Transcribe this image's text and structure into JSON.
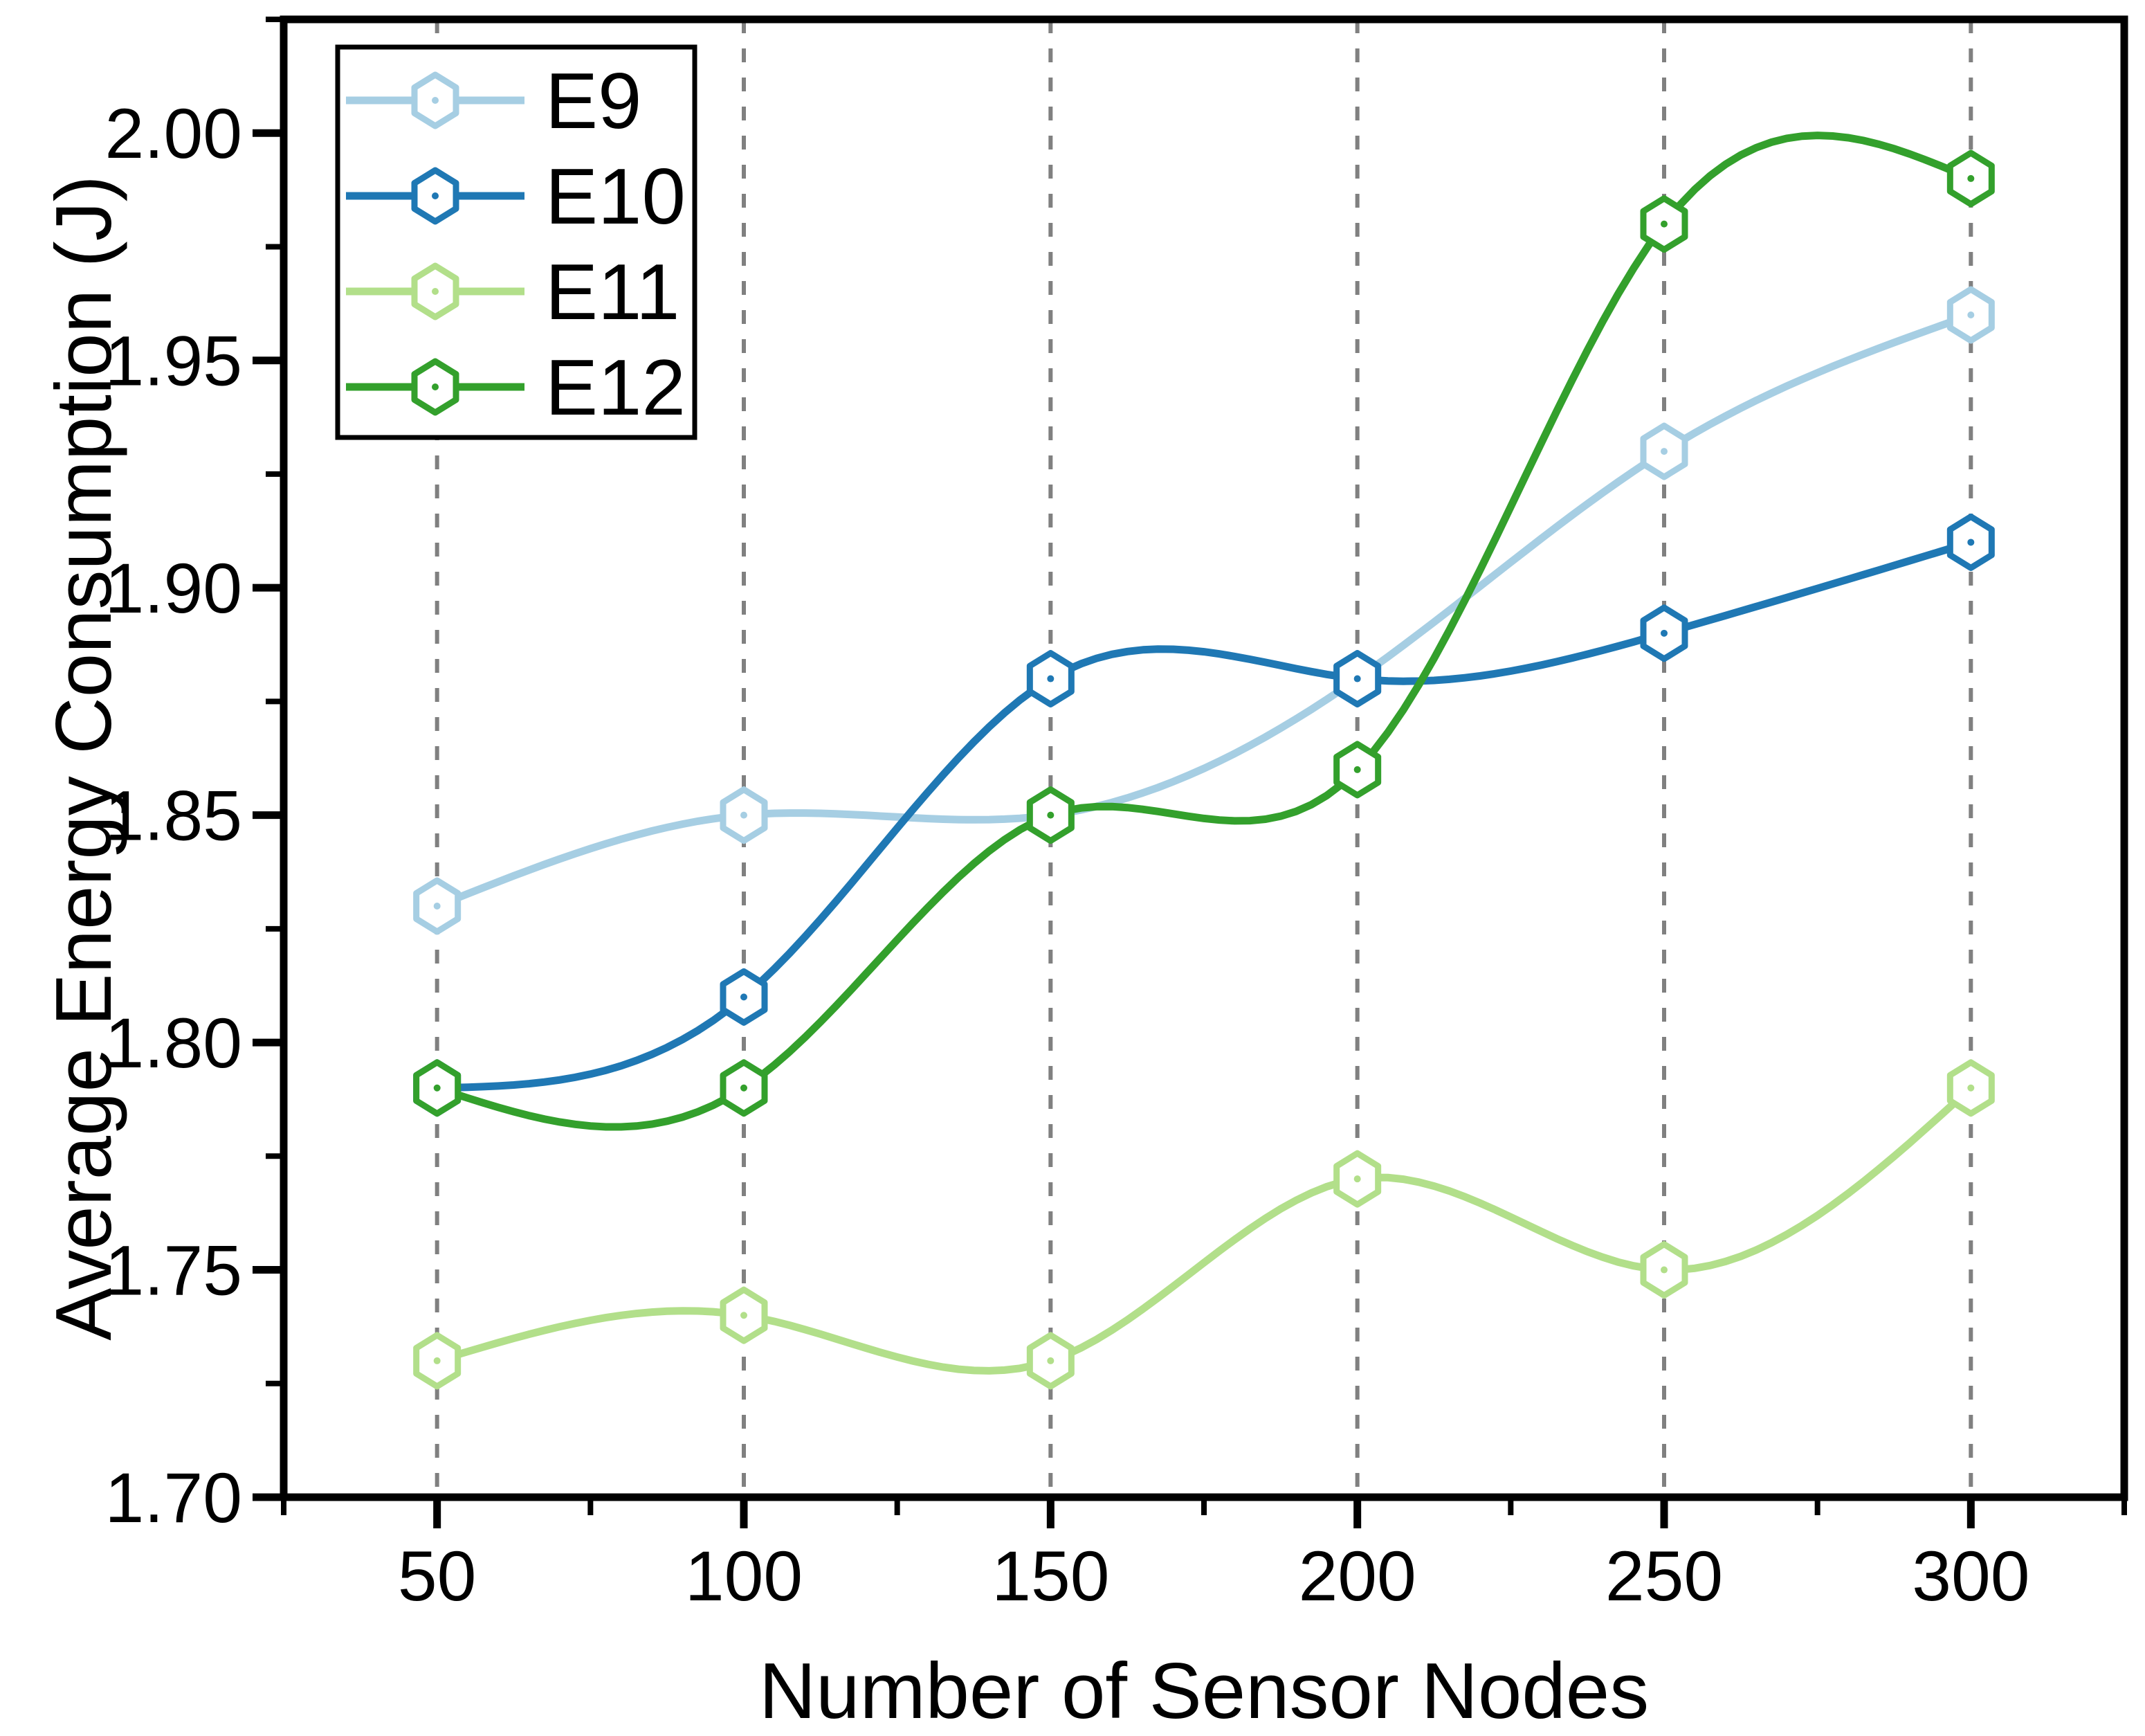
{
  "figure": {
    "background": "#ffffff",
    "axis_color": "#000000",
    "grid_color": "#808080",
    "marker_fill": "#ffffff"
  },
  "axes": {
    "x": {
      "label": "Number of Sensor Nodes",
      "major_ticks": [
        50,
        100,
        150,
        200,
        250,
        300
      ],
      "minor_ticks": [
        25,
        75,
        125,
        175,
        225,
        275,
        325
      ],
      "range": [
        25,
        325
      ]
    },
    "y": {
      "label": "Average Energy Consumption (J)",
      "major_ticks": [
        "1.70",
        "1.75",
        "1.80",
        "1.85",
        "1.90",
        "1.95",
        "2.00"
      ],
      "minor_ticks": [
        1.725,
        1.775,
        1.825,
        1.875,
        1.925,
        1.975,
        2.025
      ],
      "range": [
        1.7,
        2.025
      ]
    }
  },
  "legend": {
    "position": "top-left",
    "items": [
      {
        "label": "E9",
        "color": "#a6cee3"
      },
      {
        "label": "E10",
        "color": "#1f78b4"
      },
      {
        "label": "E11",
        "color": "#b2df8a"
      },
      {
        "label": "E12",
        "color": "#33a02c"
      }
    ]
  },
  "chart_data": {
    "type": "line",
    "title": "",
    "xlabel": "Number of Sensor Nodes",
    "ylabel": "Average Energy Consumption (J)",
    "x": [
      50,
      100,
      150,
      200,
      250,
      300
    ],
    "series": [
      {
        "name": "E9",
        "color": "#a6cee3",
        "marker": "open-hexagon",
        "values": [
          1.83,
          1.85,
          1.85,
          1.88,
          1.93,
          1.96
        ]
      },
      {
        "name": "E10",
        "color": "#1f78b4",
        "marker": "open-hexagon",
        "values": [
          1.79,
          1.81,
          1.88,
          1.88,
          1.89,
          1.91
        ]
      },
      {
        "name": "E11",
        "color": "#b2df8a",
        "marker": "open-hexagon",
        "values": [
          1.73,
          1.74,
          1.73,
          1.77,
          1.75,
          1.79
        ]
      },
      {
        "name": "E12",
        "color": "#33a02c",
        "marker": "open-hexagon",
        "values": [
          1.79,
          1.79,
          1.85,
          1.86,
          1.98,
          1.99
        ]
      }
    ],
    "xlim": [
      25,
      325
    ],
    "ylim": [
      1.7,
      2.025
    ],
    "grid": "vertical-dashed-at-x-major-ticks",
    "line_style": "smooth-cubic-spline",
    "legend_position": "top-left"
  }
}
